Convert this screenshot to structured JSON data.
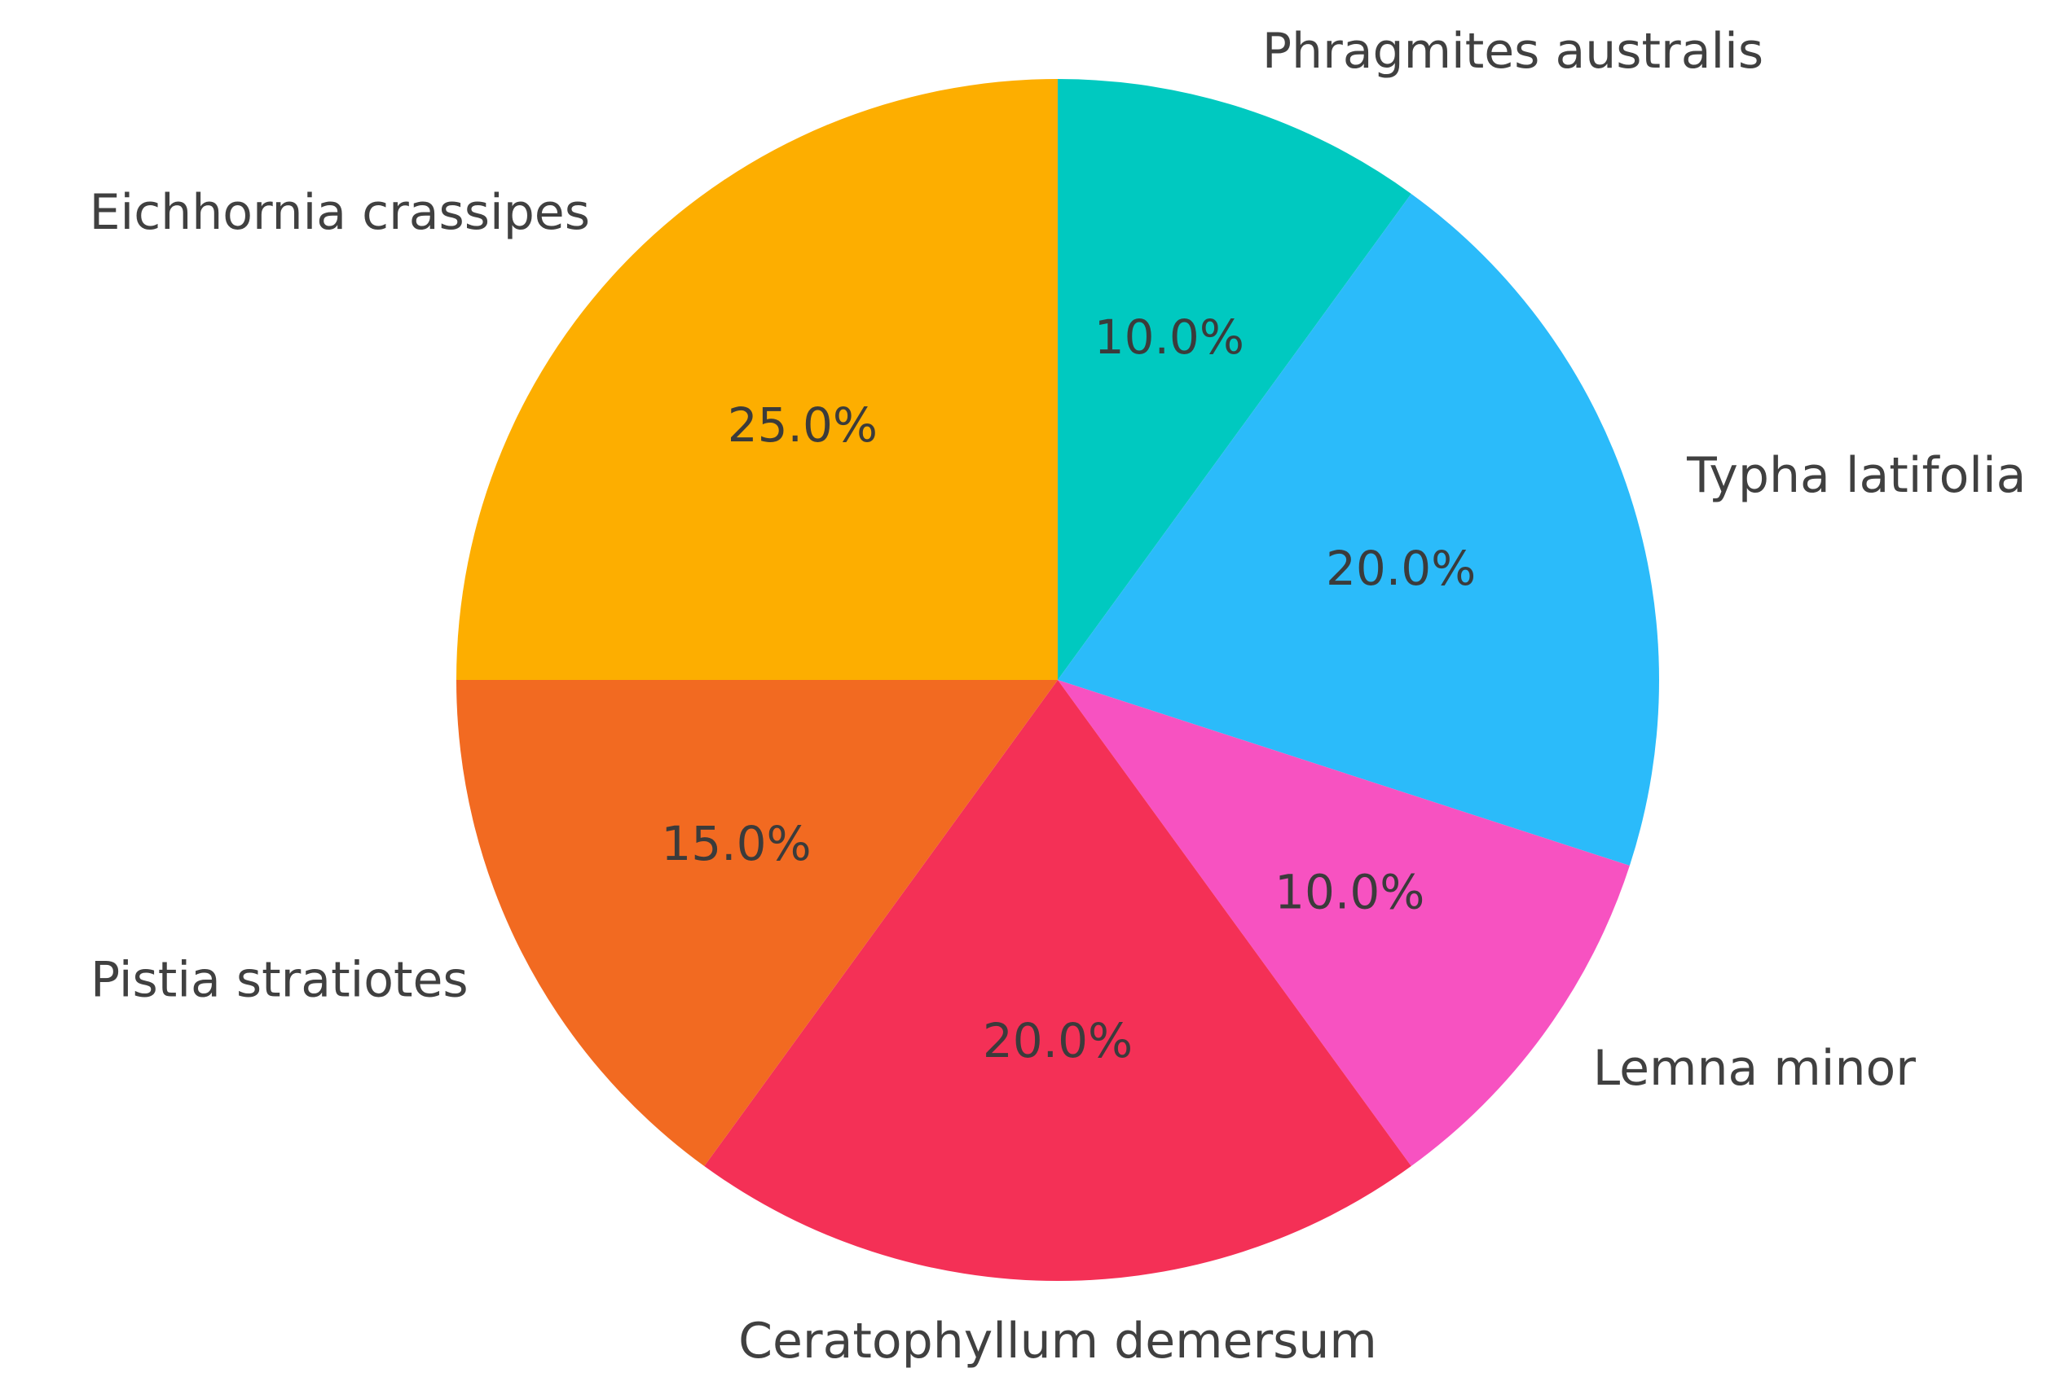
{
  "chart_data": {
    "type": "pie",
    "start_angle_deg": 90,
    "direction": "clockwise",
    "legend": "none",
    "slices": [
      {
        "label": "Phragmites australis",
        "value": 10.0,
        "pct_label": "10.0%",
        "color": "#00C9C0"
      },
      {
        "label": "Typha latifolia",
        "value": 20.0,
        "pct_label": "20.0%",
        "color": "#2BBBFA"
      },
      {
        "label": "Lemna minor",
        "value": 10.0,
        "pct_label": "10.0%",
        "color": "#F752C1"
      },
      {
        "label": "Ceratophyllum demersum",
        "value": 20.0,
        "pct_label": "20.0%",
        "color": "#F43056"
      },
      {
        "label": "Pistia stratiotes",
        "value": 15.0,
        "pct_label": "15.0%",
        "color": "#F26A21"
      },
      {
        "label": "Eichhornia crassipes",
        "value": 25.0,
        "pct_label": "25.0%",
        "color": "#FDAE00"
      }
    ]
  }
}
